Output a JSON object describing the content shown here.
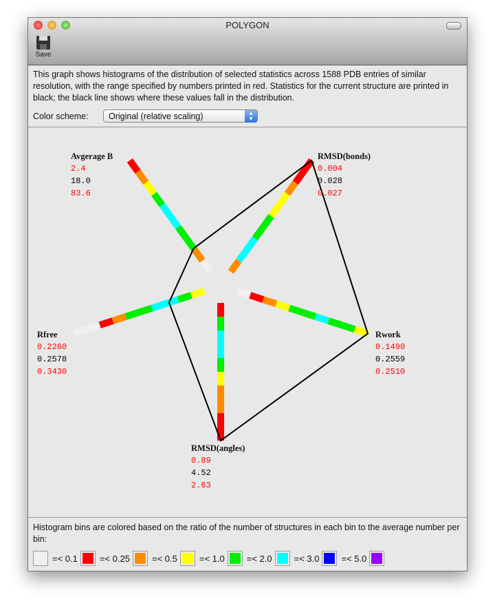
{
  "window": {
    "title": "POLYGON",
    "toolbar": {
      "save_label": "Save",
      "save_icon": "floppy-disk-icon"
    }
  },
  "description": "This graph shows histograms of the distribution of selected statistics across 1588 PDB entries of similar resolution, with the range specified by numbers printed in red.  Statistics for the current structure are printed in black; the black line shows where these values fall in the distribution.",
  "color_scheme": {
    "label": "Color scheme:",
    "selected": "Original (relative scaling)"
  },
  "colors": {
    "white": "#f0f0f0",
    "red": "#ff0000",
    "orange": "#ff8c00",
    "yellow": "#ffff00",
    "green": "#00ee00",
    "cyan": "#00ffff",
    "blue": "#0000ff",
    "purple": "#9900ff",
    "polygon": "#000000"
  },
  "axes": [
    {
      "name": "Avgerage B",
      "min": "2.4",
      "current": "18.0",
      "max": "83.6",
      "current_fraction": 0.21,
      "bins": [
        "white",
        "orange",
        "green",
        "green",
        "cyan",
        "cyan",
        "green",
        "yellow",
        "orange",
        "red"
      ]
    },
    {
      "name": "RMSD(bonds)",
      "min": "0.004",
      "current": "0.028",
      "max": "0.027",
      "current_fraction": 1.0,
      "bins": [
        "orange",
        "cyan",
        "cyan",
        "green",
        "green",
        "yellow",
        "yellow",
        "orange",
        "red",
        "red"
      ]
    },
    {
      "name": "Rwork",
      "min": "0.1490",
      "current": "0.2559",
      "max": "0.2510",
      "current_fraction": 1.0,
      "bins": [
        "white",
        "red",
        "orange",
        "yellow",
        "green",
        "green",
        "cyan",
        "green",
        "green",
        "yellow"
      ]
    },
    {
      "name": "RMSD(angles)",
      "min": "0.89",
      "current": "4.52",
      "max": "2.63",
      "current_fraction": 1.0,
      "bins": [
        "red",
        "green",
        "cyan",
        "cyan",
        "green",
        "yellow",
        "orange",
        "orange",
        "red",
        "red"
      ]
    },
    {
      "name": "Rfree",
      "min": "0.2260",
      "current": "0.2578",
      "max": "0.3430",
      "current_fraction": 0.27,
      "bins": [
        "yellow",
        "green",
        "cyan",
        "cyan",
        "green",
        "green",
        "orange",
        "red",
        "white",
        "white"
      ]
    }
  ],
  "legend": {
    "text": "Histogram bins are colored based on the ratio of the number of structures in each bin to the average number per bin:",
    "items": [
      {
        "color": "white",
        "label": "=< 0.1"
      },
      {
        "color": "red",
        "label": "=< 0.25"
      },
      {
        "color": "orange",
        "label": "=< 0.5"
      },
      {
        "color": "yellow",
        "label": "=< 1.0"
      },
      {
        "color": "green",
        "label": "=< 2.0"
      },
      {
        "color": "cyan",
        "label": "=< 3.0"
      },
      {
        "color": "blue",
        "label": "=< 5.0"
      },
      {
        "color": "purple",
        "label": ""
      }
    ]
  }
}
